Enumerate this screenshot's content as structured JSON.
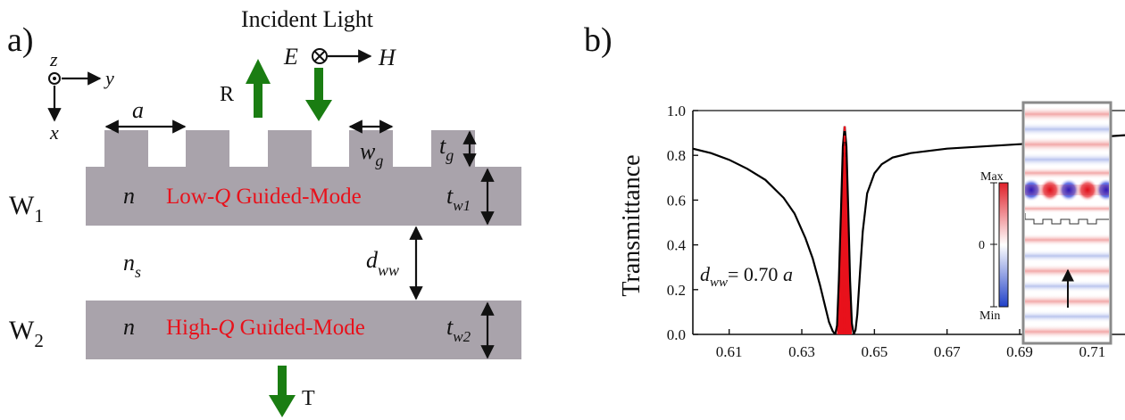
{
  "panel_a": {
    "label": "a)",
    "incident_title": "Incident Light",
    "field_e": "E",
    "field_h": "H",
    "reflected_label": "R",
    "transmitted_label": "T",
    "axis_z": "z",
    "axis_y": "y",
    "axis_x": "x",
    "period_label": "a",
    "grating_width_label": "w",
    "grating_width_sub": "g",
    "grating_thickness_label": "t",
    "grating_thickness_sub": "g",
    "waveguide1_label": "W",
    "waveguide1_sub": "1",
    "waveguide2_label": "W",
    "waveguide2_sub": "2",
    "index_label_1": "n",
    "index_label_2": "n",
    "substrate_label": "n",
    "substrate_sub": "s",
    "mode1_prefix": "Low-",
    "mode1_q": "Q",
    "mode1_suffix": " Guided-Mode",
    "mode2_prefix": "High-",
    "mode2_q": "Q",
    "mode2_suffix": " Guided-Mode",
    "tw1_label": "t",
    "tw1_sub": "w1",
    "tw2_label": "t",
    "tw2_sub": "w2",
    "dww_label": "d",
    "dww_sub": "ww",
    "colors": {
      "slab": "#a9a3ab",
      "arrow_green": "#1a7d12",
      "mode_text": "#e8111b"
    }
  },
  "panel_b": {
    "label": "b)",
    "annotation_d": "d",
    "annotation_sub": "ww",
    "annotation_value": "= 0.70 ",
    "annotation_unit": "a",
    "inset": {
      "max_label": "Max",
      "zero_label": "0",
      "min_label": "Min"
    }
  },
  "chart_data": {
    "type": "line",
    "title": "",
    "xlabel": "",
    "ylabel": "Transmittance",
    "xlim": [
      0.6,
      0.719
    ],
    "ylim": [
      0.0,
      1.0
    ],
    "x_ticks": [
      "0.61",
      "0.63",
      "0.65",
      "0.67",
      "0.69",
      "0.71"
    ],
    "y_ticks": [
      "0.0",
      "0.2",
      "0.4",
      "0.6",
      "0.8",
      "1.0"
    ],
    "grid": false,
    "series": [
      {
        "color": "#000000",
        "x": [
          0.6,
          0.605,
          0.61,
          0.615,
          0.62,
          0.625,
          0.628,
          0.631,
          0.633,
          0.635,
          0.6365,
          0.6375,
          0.6385,
          0.6392,
          0.6397,
          0.6402,
          0.6408,
          0.6413,
          0.6418,
          0.6423,
          0.6428,
          0.6433,
          0.6438,
          0.6443,
          0.6448,
          0.6453,
          0.646,
          0.6468,
          0.648,
          0.65,
          0.652,
          0.655,
          0.66,
          0.665,
          0.67,
          0.68,
          0.69,
          0.7,
          0.71,
          0.719
        ],
        "y": [
          0.83,
          0.81,
          0.78,
          0.74,
          0.69,
          0.61,
          0.54,
          0.43,
          0.34,
          0.22,
          0.12,
          0.055,
          0.015,
          0.0,
          0.04,
          0.24,
          0.55,
          0.84,
          0.93,
          0.84,
          0.55,
          0.24,
          0.05,
          0.0,
          0.02,
          0.09,
          0.27,
          0.46,
          0.63,
          0.72,
          0.76,
          0.79,
          0.81,
          0.82,
          0.83,
          0.84,
          0.85,
          0.86,
          0.88,
          0.89
        ]
      }
    ],
    "resonance_marker": {
      "x": 0.6418,
      "color": "#e8111b",
      "style": "dashed"
    },
    "highlight_region_color": "#e8111b"
  }
}
